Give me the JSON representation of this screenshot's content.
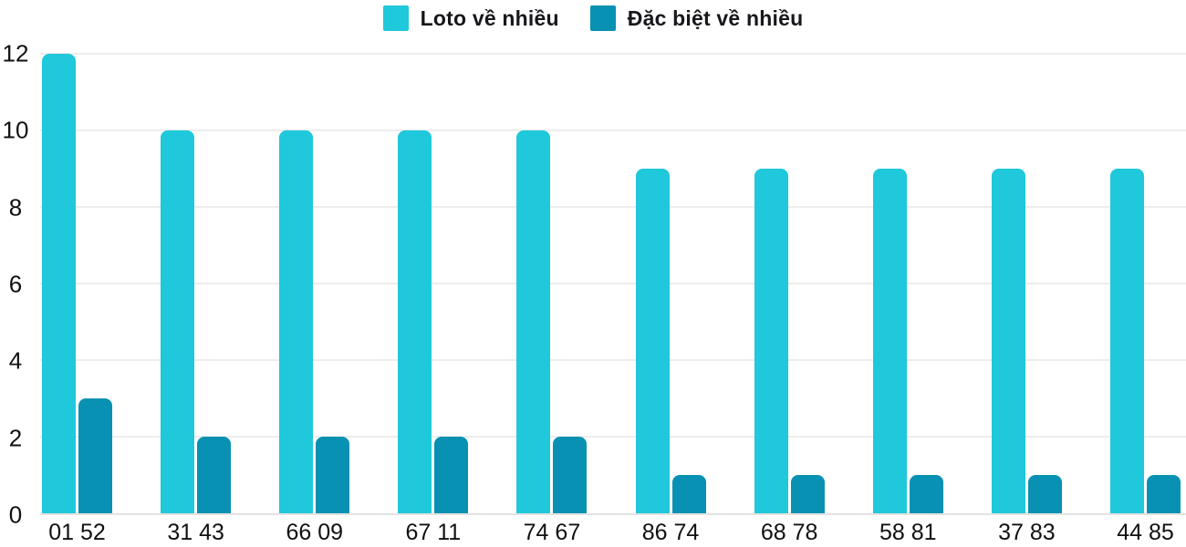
{
  "chart_data": {
    "type": "bar",
    "title": "",
    "xlabel": "",
    "ylabel": "",
    "categories": [
      "01 52",
      "31 43",
      "66 09",
      "67 11",
      "74 67",
      "86 74",
      "68 78",
      "58 81",
      "37 83",
      "44 85"
    ],
    "series": [
      {
        "name": "Loto về nhiều",
        "color": "#1fc8da",
        "values": [
          12,
          10,
          10,
          10,
          10,
          9,
          9,
          9,
          9,
          9
        ]
      },
      {
        "name": "Đặc biệt về nhiều",
        "color": "#0891b2",
        "values": [
          3,
          2,
          2,
          2,
          2,
          1,
          1,
          1,
          1,
          1
        ]
      }
    ],
    "ylim": [
      0,
      12
    ],
    "yticks": [
      0,
      2,
      4,
      6,
      8,
      10,
      12
    ],
    "grid": true,
    "grid_color": "#ededed",
    "axis_text_color": "#111111",
    "legend_position": "top-center",
    "background_color": "#ffffff"
  }
}
